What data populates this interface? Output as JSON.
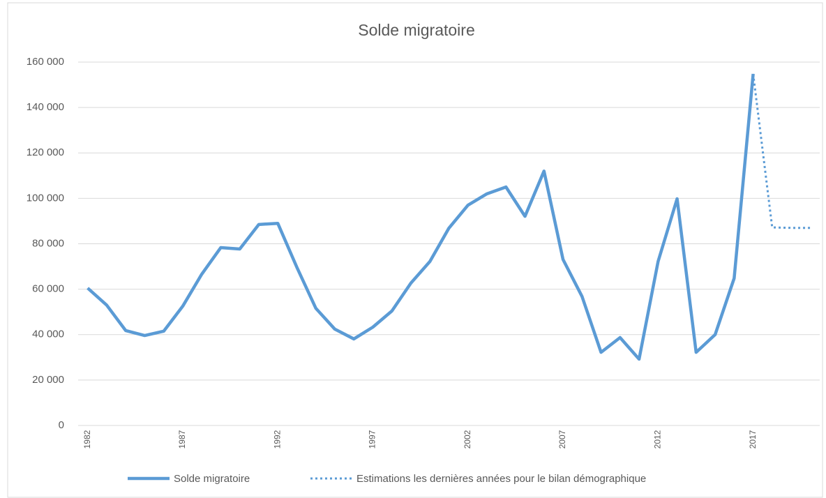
{
  "chart_data": {
    "type": "line",
    "title": "Solde migratoire",
    "categories": [
      "1982",
      null,
      null,
      null,
      null,
      "1987",
      null,
      null,
      null,
      null,
      "1992",
      null,
      null,
      null,
      null,
      "1997",
      null,
      null,
      null,
      null,
      "2002",
      null,
      null,
      null,
      null,
      "2007",
      null,
      null,
      null,
      null,
      "2012",
      null,
      null,
      null,
      null,
      "2017",
      null,
      null,
      null
    ],
    "series": [
      {
        "name": "Solde migratoire",
        "color": "#5b9bd5",
        "dash": false,
        "values": [
          60500,
          53000,
          41800,
          39600,
          41500,
          52500,
          66600,
          78300,
          77700,
          88500,
          89000,
          69700,
          51600,
          42400,
          38100,
          43300,
          50400,
          62700,
          72200,
          86900,
          97000,
          102000,
          105000,
          92100,
          112000,
          73100,
          56800,
          32200,
          38700,
          29200,
          72200,
          99800,
          32200,
          40000,
          64800,
          154800,
          null,
          null,
          null
        ]
      },
      {
        "name": "Estimations les dernières années pour le bilan démographique",
        "color": "#5b9bd5",
        "dash": true,
        "values": [
          null,
          null,
          null,
          null,
          null,
          null,
          null,
          null,
          null,
          null,
          null,
          null,
          null,
          null,
          null,
          null,
          null,
          null,
          null,
          null,
          null,
          null,
          null,
          null,
          null,
          null,
          null,
          null,
          null,
          null,
          null,
          null,
          null,
          null,
          null,
          154800,
          87200,
          87000,
          87000
        ]
      }
    ],
    "ylim": [
      0,
      160000
    ],
    "yticks": [
      0,
      {
        "value": 20000,
        "label": "20 000"
      },
      {
        "value": 40000,
        "label": "40 000"
      },
      {
        "value": 60000,
        "label": "60 000"
      },
      {
        "value": 80000,
        "label": "80 000"
      },
      {
        "value": 100000,
        "label": "100 000"
      },
      {
        "value": 120000,
        "label": "120 000"
      },
      {
        "value": 140000,
        "label": "140 000"
      },
      {
        "value": 160000,
        "label": "160 000"
      }
    ],
    "grid": true,
    "legend": "bottom"
  }
}
